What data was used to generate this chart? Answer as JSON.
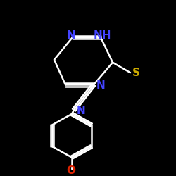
{
  "background_color": "#000000",
  "bond_color": "#ffffff",
  "bond_width": 1.8,
  "figsize": [
    2.5,
    2.5
  ],
  "dpi": 100,
  "atom_colors": {
    "N": "#4444ff",
    "NH": "#4444ff",
    "S": "#ccaa00",
    "O": "#dd2200"
  }
}
